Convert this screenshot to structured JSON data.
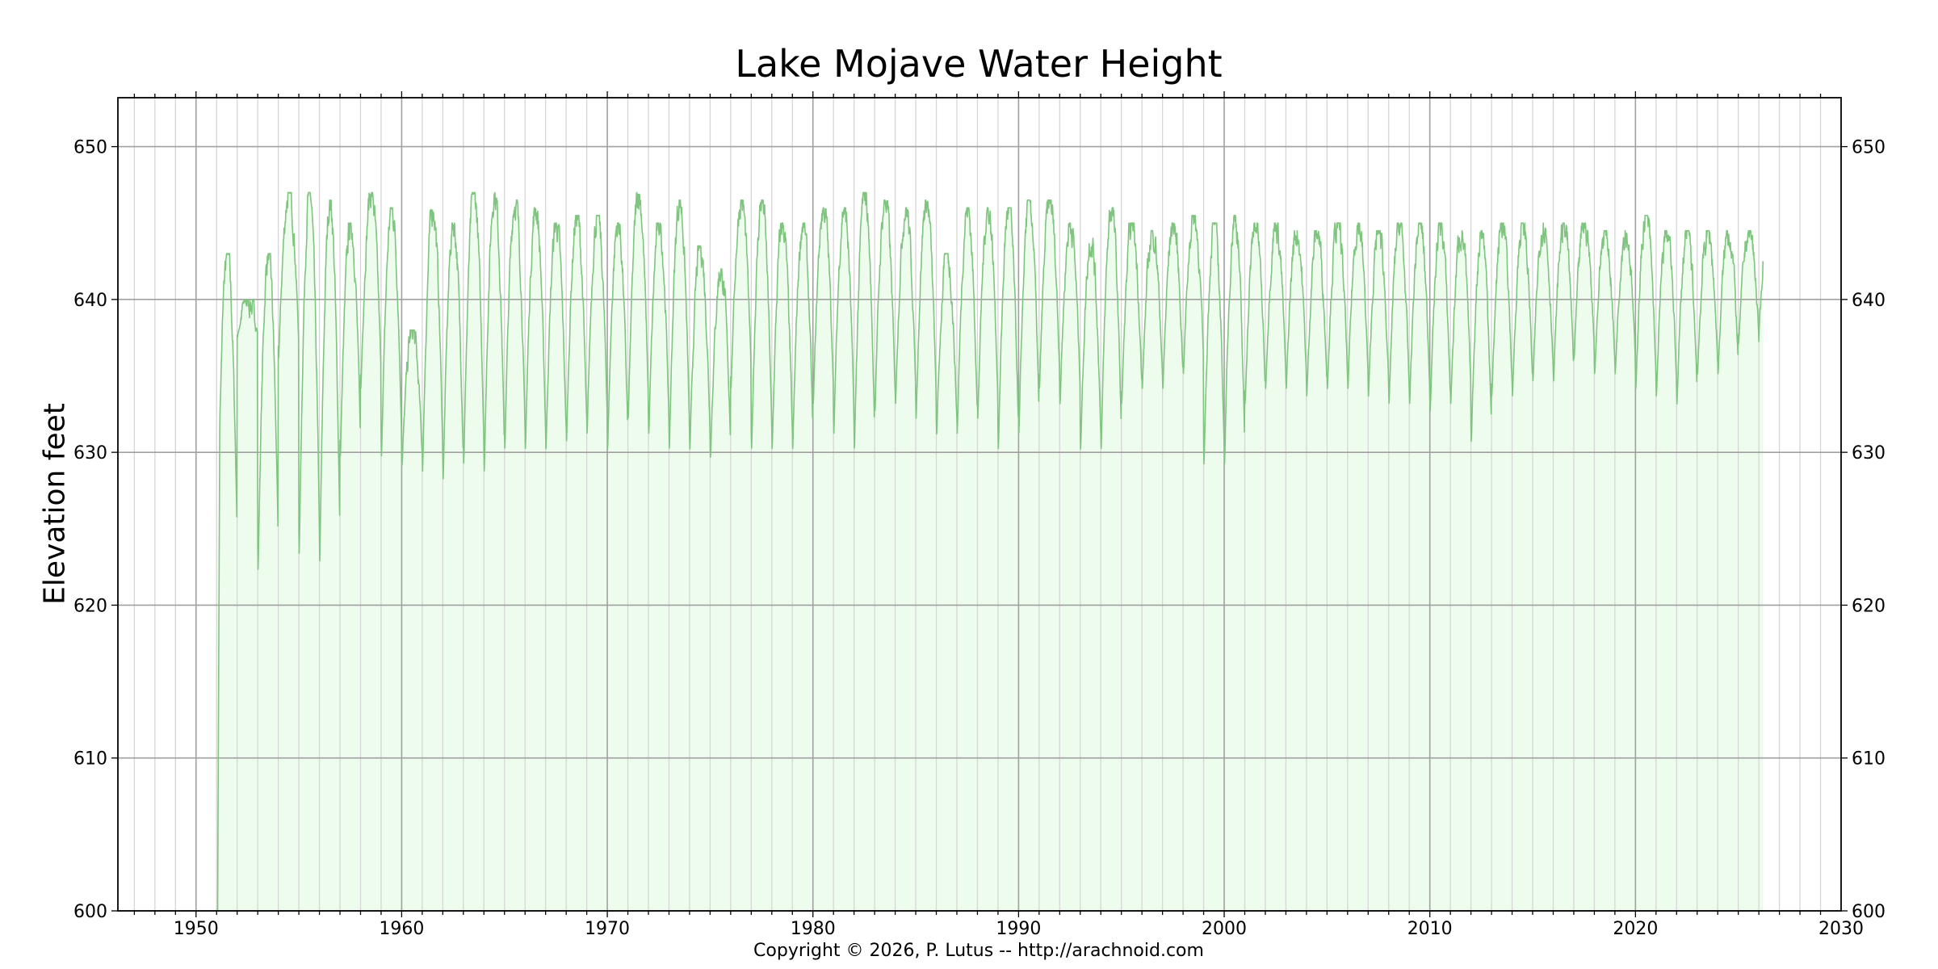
{
  "chart_data": {
    "type": "area",
    "title": "Lake Mojave Water Height",
    "xlabel": "",
    "ylabel": "Elevation feet",
    "footer": "Copyright © 2026, P. Lutus -- http://arachnoid.com",
    "xlim": [
      1946.2,
      2030
    ],
    "ylim": [
      600,
      653.2
    ],
    "xticks": [
      "1950",
      "1960",
      "1970",
      "1980",
      "1990",
      "2000",
      "2010",
      "2020",
      "2030"
    ],
    "yticks": [
      "600",
      "610",
      "620",
      "630",
      "640",
      "650"
    ],
    "grid": true,
    "series": [
      {
        "name": "Water Height",
        "color": "#7fc47f",
        "fill": "#eefcee",
        "start_year": 1951.05,
        "start_value": 600,
        "end_year": 2026.2,
        "end_value": 642.5,
        "years": [
          1951,
          1952,
          1953,
          1954,
          1955,
          1956,
          1957,
          1958,
          1959,
          1960,
          1961,
          1962,
          1963,
          1964,
          1965,
          1966,
          1967,
          1968,
          1969,
          1970,
          1971,
          1972,
          1973,
          1974,
          1975,
          1976,
          1977,
          1978,
          1979,
          1980,
          1981,
          1982,
          1983,
          1984,
          1985,
          1986,
          1987,
          1988,
          1989,
          1990,
          1991,
          1992,
          1993,
          1994,
          1995,
          1996,
          1997,
          1998,
          1999,
          2000,
          2001,
          2002,
          2003,
          2004,
          2005,
          2006,
          2007,
          2008,
          2009,
          2010,
          2011,
          2012,
          2013,
          2014,
          2015,
          2016,
          2017,
          2018,
          2019,
          2020,
          2021,
          2022,
          2023,
          2024,
          2025
        ],
        "annual_peak": [
          643,
          640,
          643,
          647,
          647,
          646.5,
          645,
          647,
          646,
          638,
          646,
          645,
          647,
          647,
          646.5,
          646,
          645,
          645.5,
          645.5,
          645,
          647,
          645,
          646.5,
          643.5,
          642,
          646.5,
          646.5,
          645,
          645,
          646,
          646,
          647,
          646.5,
          646,
          646.5,
          643,
          646,
          646,
          646,
          646.5,
          646.5,
          645,
          644,
          646,
          645,
          644.5,
          645,
          645.5,
          645,
          645.5,
          645,
          645,
          644.5,
          644.5,
          645,
          645,
          644.5,
          645,
          645,
          645,
          644.5,
          644.5,
          645,
          645,
          645,
          645,
          645,
          644.5,
          644.5,
          645.5,
          644.5,
          644.5,
          644.5,
          644.5,
          644.5
        ],
        "annual_trough": [
          623,
          637.5,
          622,
          636,
          623,
          622.5,
          629.5,
          634,
          629.5,
          629,
          628.5,
          628,
          629,
          628.5,
          630,
          630,
          630,
          630.5,
          631,
          630,
          632,
          631,
          630,
          630,
          629.5,
          634,
          630,
          630,
          630,
          633,
          631,
          630,
          632.5,
          633,
          632,
          631,
          631,
          632,
          630,
          631,
          634,
          633,
          630,
          630,
          633,
          634,
          634,
          635,
          629,
          629,
          633,
          634,
          634,
          633.5,
          634,
          634,
          633.5,
          633,
          633,
          632.5,
          633,
          630.5,
          633.5,
          633.5,
          634.5,
          634.5,
          636,
          635,
          635,
          634,
          633.5,
          633,
          635,
          635,
          637
        ]
      }
    ]
  }
}
